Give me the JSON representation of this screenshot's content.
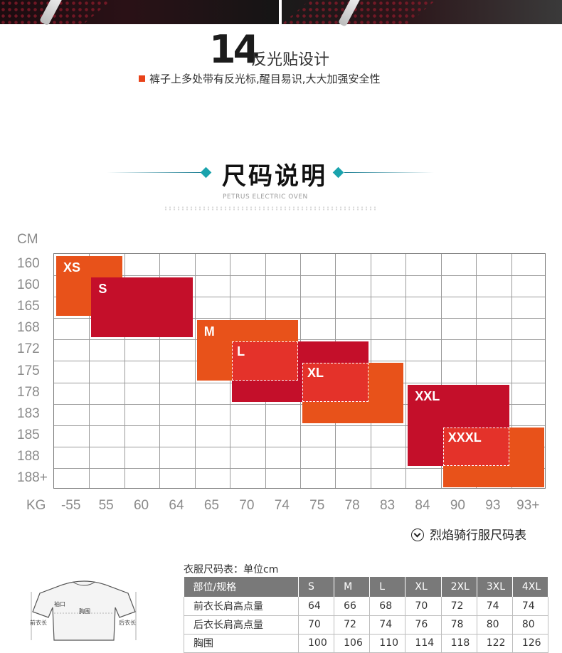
{
  "feature": {
    "number": "14",
    "title": "反光贴设计",
    "description": "裤子上多处带有反光标,醒目易识,大大加强安全性"
  },
  "size_section": {
    "title": "尺码说明",
    "subtitle": "PETRUS ELECTRIC OVEN"
  },
  "colors": {
    "orange": "#e8521a",
    "red": "#c40f2a",
    "bright_red": "#e4322a",
    "accent": "#1aa3ad"
  },
  "chart_data": {
    "type": "table",
    "y_axis_unit": "CM",
    "x_axis_unit": "KG",
    "height_ticks": [
      "160",
      "160",
      "165",
      "168",
      "172",
      "175",
      "178",
      "183",
      "185",
      "188",
      "188+"
    ],
    "weight_ticks": [
      "-55",
      "55",
      "60",
      "64",
      "65",
      "70",
      "74",
      "75",
      "78",
      "83",
      "84",
      "90",
      "93",
      "93+"
    ],
    "sizes": [
      {
        "name": "XS",
        "weight_range": [
          "-55",
          "55"
        ],
        "height_range": [
          "160",
          "165"
        ]
      },
      {
        "name": "S",
        "weight_range": [
          "55",
          "64"
        ],
        "height_range": [
          "160",
          "168"
        ]
      },
      {
        "name": "M",
        "weight_range": [
          "65",
          "74"
        ],
        "height_range": [
          "168",
          "175"
        ]
      },
      {
        "name": "L",
        "weight_range": [
          "70",
          "78"
        ],
        "height_range": [
          "172",
          "178"
        ]
      },
      {
        "name": "XL",
        "weight_range": [
          "75",
          "83"
        ],
        "height_range": [
          "175",
          "183"
        ]
      },
      {
        "name": "XXL",
        "weight_range": [
          "84",
          "93"
        ],
        "height_range": [
          "178",
          "188"
        ]
      },
      {
        "name": "XXXL",
        "weight_range": [
          "90",
          "93+"
        ],
        "height_range": [
          "185",
          "188+"
        ]
      }
    ],
    "caption": "烈焰骑行服尺码表"
  },
  "jersey": {
    "labels": {
      "cuff": "袖口",
      "chest": "胸围",
      "front_length": "前衣长",
      "back_length": "后衣长"
    }
  },
  "size_table": {
    "caption": "衣服尺码表：单位cm",
    "headers": [
      "部位/规格",
      "S",
      "M",
      "L",
      "XL",
      "2XL",
      "3XL",
      "4XL"
    ],
    "rows": [
      [
        "前衣长肩高点量",
        "64",
        "66",
        "68",
        "70",
        "72",
        "74",
        "74"
      ],
      [
        "后衣长肩高点量",
        "70",
        "72",
        "74",
        "76",
        "78",
        "80",
        "80"
      ],
      [
        "胸围",
        "100",
        "106",
        "110",
        "114",
        "118",
        "122",
        "126"
      ]
    ]
  }
}
